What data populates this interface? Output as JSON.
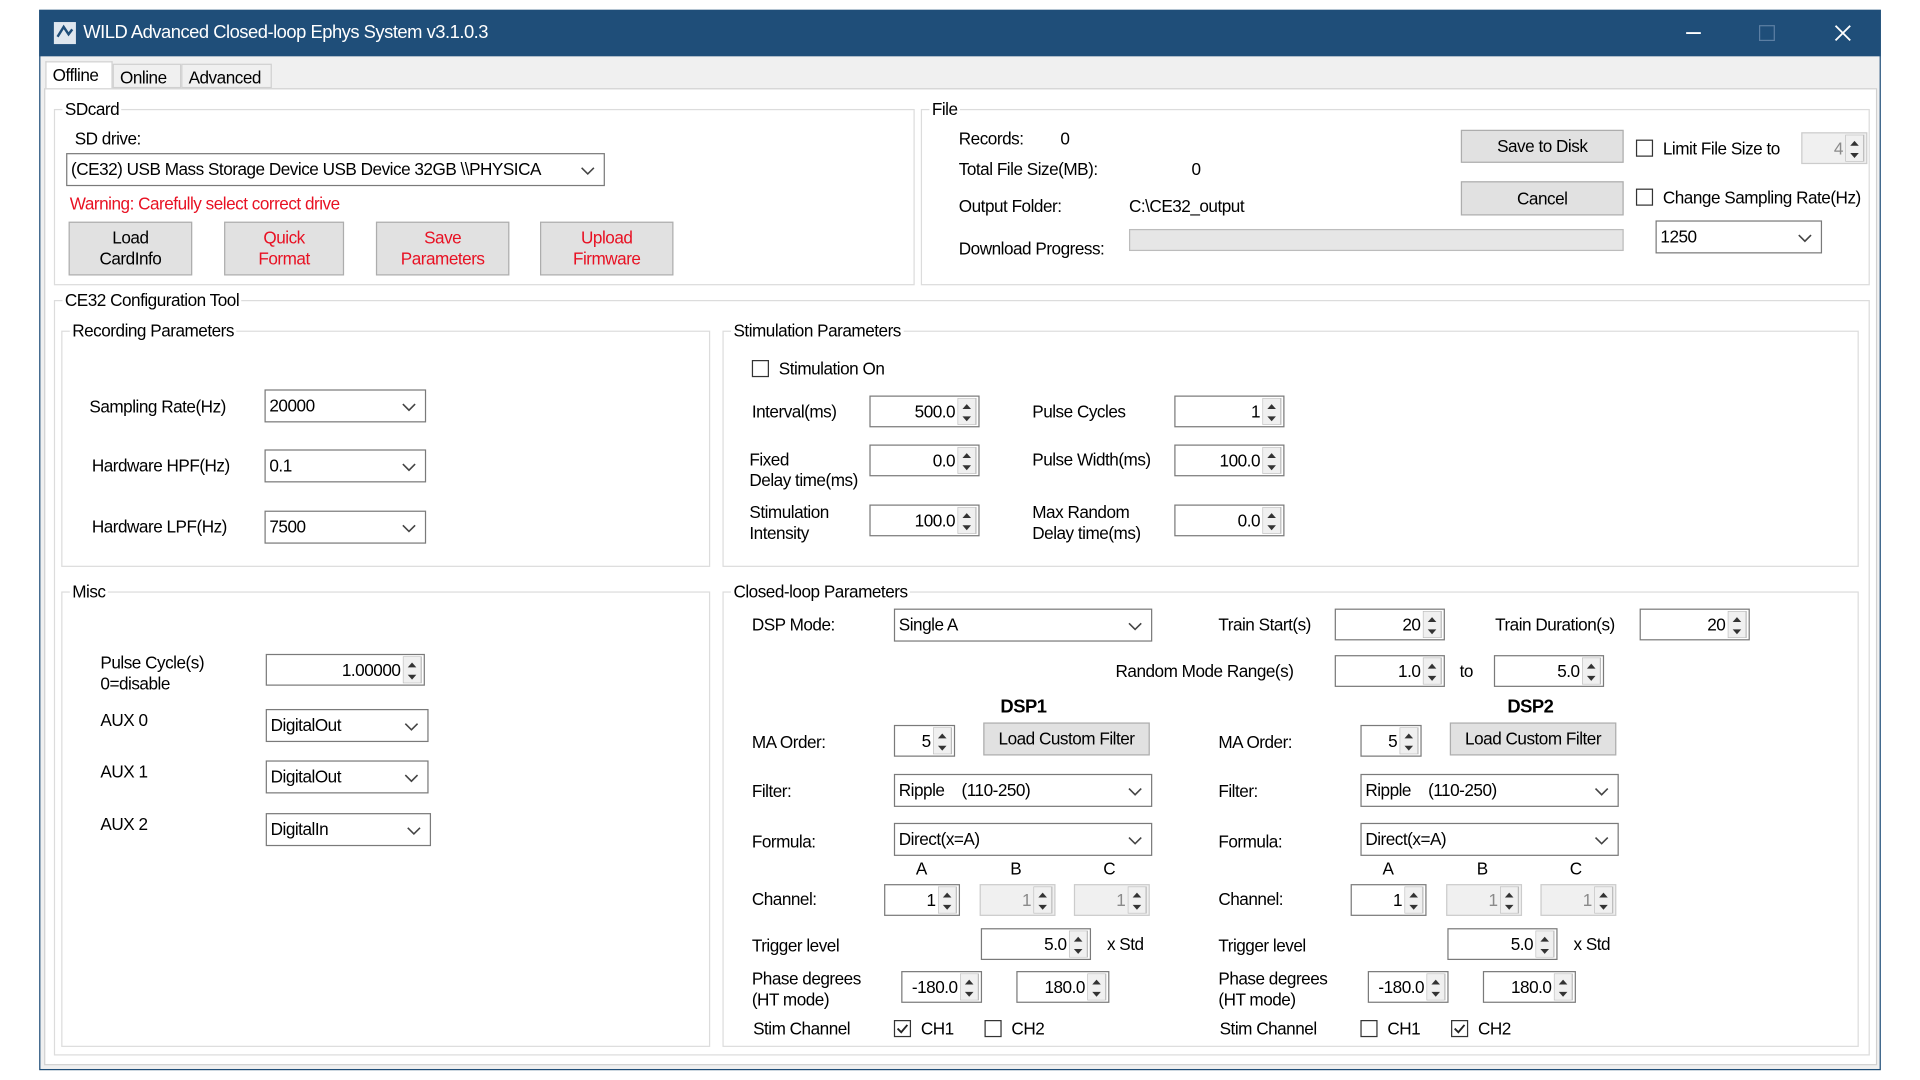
{
  "title_bar": {
    "title": "WILD Advanced Closed-loop Ephys System v3.1.0.3"
  },
  "tabs": [
    "Offline",
    "Online",
    "Advanced"
  ],
  "sdcard": {
    "heading": "SDcard",
    "drive_label": "SD drive:",
    "drive": "(CE32) USB Mass Storage Device USB Device 32GB \\\\PHYSICA",
    "warning": "Warning: Carefully select correct drive",
    "load_cardinfo": "Load\nCardInfo",
    "quick_format": "Quick\nFormat",
    "save_parameters": "Save\nParameters",
    "upload_firmware": "Upload\nFirmware"
  },
  "file": {
    "heading": "File",
    "records_label": "Records:",
    "records": "0",
    "total_size_label": "Total File Size(MB):",
    "total_size": "0",
    "output_folder_label": "Output Folder:",
    "output_folder": "C:\\CE32_output",
    "download_progress_label": "Download Progress:",
    "save_to_disk": "Save to Disk",
    "cancel": "Cancel",
    "limit_file_size": {
      "label": "Limit File Size to",
      "checked": false
    },
    "limit_file_size_value": "4",
    "change_sampling_rate": {
      "label": "Change Sampling Rate(Hz)",
      "checked": false
    },
    "sampling_rate": "1250"
  },
  "config": {
    "heading": "CE32 Configuration Tool",
    "recording": {
      "heading": "Recording Parameters",
      "sampling_rate_label": "Sampling Rate(Hz)",
      "sampling_rate": "20000",
      "hpf_label": "Hardware HPF(Hz)",
      "hpf": "0.1",
      "lpf_label": "Hardware LPF(Hz)",
      "lpf": "7500"
    },
    "stimulation": {
      "heading": "Stimulation Parameters",
      "stimulation_on": {
        "label": "Stimulation On",
        "checked": false
      },
      "interval_label": "Interval(ms)",
      "interval": "500.0",
      "fixed_delay_label": "Fixed\nDelay time(ms)",
      "fixed_delay": "0.0",
      "intensity_label": "Stimulation\nIntensity",
      "intensity": "100.0",
      "pulse_cycles_label": "Pulse Cycles",
      "pulse_cycles": "1",
      "pulse_width_label": "Pulse Width(ms)",
      "pulse_width": "100.0",
      "max_random_delay_label": "Max Random\nDelay time(ms)",
      "max_random_delay": "0.0"
    },
    "misc": {
      "heading": "Misc",
      "pulse_cycle_label": "Pulse Cycle(s)\n0=disable",
      "pulse_cycle": "1.00000",
      "aux0_label": "AUX 0",
      "aux0": "DigitalOut",
      "aux1_label": "AUX 1",
      "aux1": "DigitalOut",
      "aux2_label": "AUX 2",
      "aux2": "DigitalIn"
    },
    "closed_loop": {
      "heading": "Closed-loop Parameters",
      "dsp_mode_label": "DSP Mode:",
      "dsp_mode": "Single A",
      "train_start_label": "Train Start(s)",
      "train_start": "20",
      "train_duration_label": "Train Duration(s)",
      "train_duration": "20",
      "random_range_label": "Random Mode Range(s)",
      "random_range_min": "1.0",
      "random_range_to": "to",
      "random_range_max": "5.0",
      "dsps": [
        {
          "name": "DSP1",
          "ma_order_label": "MA Order:",
          "ma_order": "5",
          "load_custom_filter": "Load Custom Filter",
          "filter_label": "Filter:",
          "filter": "Ripple    (110-250)",
          "formula_label": "Formula:",
          "formula": "Direct(x=A)",
          "channel_headers": [
            "A",
            "B",
            "C"
          ],
          "channel_label": "Channel:",
          "channels": [
            "1",
            "1",
            "1"
          ],
          "trigger_label": "Trigger level",
          "trigger": "5.0",
          "trigger_unit": "x Std",
          "phase_label": "Phase degrees\n(HT mode)",
          "phase_min": "-180.0",
          "phase_max": "180.0",
          "stim_channel_label": "Stim Channel",
          "ch1": {
            "label": "CH1",
            "checked": true
          },
          "ch2": {
            "label": "CH2",
            "checked": false
          }
        },
        {
          "name": "DSP2",
          "ma_order_label": "MA Order:",
          "ma_order": "5",
          "load_custom_filter": "Load Custom Filter",
          "filter_label": "Filter:",
          "filter": "Ripple    (110-250)",
          "formula_label": "Formula:",
          "formula": "Direct(x=A)",
          "channel_headers": [
            "A",
            "B",
            "C"
          ],
          "channel_label": "Channel:",
          "channels": [
            "1",
            "1",
            "1"
          ],
          "trigger_label": "Trigger level",
          "trigger": "5.0",
          "trigger_unit": "x Std",
          "phase_label": "Phase degrees\n(HT mode)",
          "phase_min": "-180.0",
          "phase_max": "180.0",
          "stim_channel_label": "Stim Channel",
          "ch1": {
            "label": "CH1",
            "checked": false
          },
          "ch2": {
            "label": "CH2",
            "checked": true
          }
        }
      ]
    }
  }
}
